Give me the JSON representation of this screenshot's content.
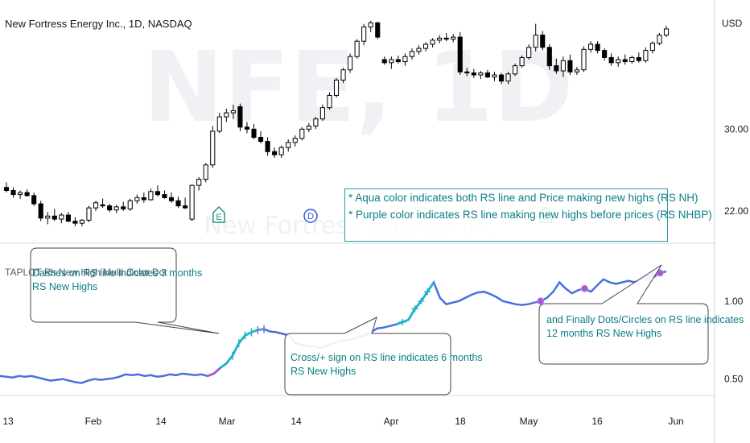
{
  "header": {
    "title": "New Fortress Energy Inc., 1D, NASDAQ",
    "currency": "USD",
    "watermark_ticker": "NFE, 1D",
    "watermark_name": "New Fortress Energy Inc."
  },
  "indicator": {
    "name": "TAPLOT Rs New High Multi Color Dot"
  },
  "info_box": {
    "line1": "* Aqua color indicates both RS line and Price making new highs (RS NH)",
    "line2": "* Purple color indicates RS line making new highs before prices (RS NHBP)"
  },
  "callouts": {
    "dashes": {
      "line1": "Dashes on RS line indicates 3 months",
      "line2": "RS New Highs"
    },
    "cross": {
      "line1": "Cross/+ sign on RS line indicates 6 months",
      "line2": "RS New Highs"
    },
    "dots": {
      "line1": "and Finally Dots/Circles on RS line indicates",
      "line2": "12 months RS New Highs"
    }
  },
  "event_markers": [
    {
      "label": "E",
      "type": "earnings",
      "date": "Feb 28"
    },
    {
      "label": "D",
      "type": "dividend",
      "date": "Mar 14"
    },
    {
      "label": "E",
      "type": "earnings",
      "date": "May 4"
    }
  ],
  "colors": {
    "candle_up": "#ffffff",
    "candle_down": "#000000",
    "rs_line": "#4a6fe0",
    "rs_nh_aqua": "#1fb3c9",
    "rs_nhbp_purple": "#a45ad6",
    "annotation_teal": "#0b7e86",
    "earnings_marker": "#1a9a7a",
    "dividend_marker": "#2a5ad8"
  },
  "chart_data": [
    {
      "type": "candlestick",
      "title": "New Fortress Energy Inc., 1D, NASDAQ",
      "ylabel": "USD",
      "y_ticks": [
        "22.00",
        "30.00"
      ],
      "x_ticks": [
        "13",
        "Feb",
        "14",
        "Mar",
        "14",
        "Apr",
        "18",
        "May",
        "16",
        "Jun"
      ],
      "ylim": [
        19,
        42
      ],
      "ohlc": [
        [
          24.3,
          24.8,
          23.8,
          24.0
        ],
        [
          24.0,
          24.3,
          23.3,
          23.6
        ],
        [
          23.6,
          24.0,
          23.2,
          23.8
        ],
        [
          23.8,
          24.1,
          23.4,
          23.5
        ],
        [
          23.5,
          23.8,
          22.5,
          22.7
        ],
        [
          22.7,
          23.0,
          21.0,
          21.3
        ],
        [
          21.3,
          21.9,
          20.7,
          21.5
        ],
        [
          21.5,
          22.2,
          21.0,
          21.2
        ],
        [
          21.2,
          21.8,
          20.8,
          21.6
        ],
        [
          21.6,
          21.9,
          20.9,
          21.0
        ],
        [
          21.0,
          21.4,
          20.5,
          20.8
        ],
        [
          20.8,
          21.2,
          20.5,
          21.1
        ],
        [
          21.1,
          22.5,
          20.9,
          22.3
        ],
        [
          22.3,
          23.0,
          22.0,
          22.8
        ],
        [
          22.6,
          23.2,
          22.3,
          22.5
        ],
        [
          22.5,
          22.7,
          21.9,
          22.1
        ],
        [
          22.1,
          22.6,
          21.8,
          22.4
        ],
        [
          22.4,
          22.9,
          22.0,
          22.2
        ],
        [
          22.2,
          23.2,
          22.0,
          23.0
        ],
        [
          23.0,
          23.6,
          22.7,
          23.3
        ],
        [
          23.3,
          23.8,
          22.8,
          23.1
        ],
        [
          23.1,
          24.2,
          23.0,
          23.9
        ],
        [
          23.9,
          24.5,
          23.4,
          23.6
        ],
        [
          23.6,
          24.0,
          23.2,
          23.3
        ],
        [
          23.3,
          23.8,
          22.8,
          23.0
        ],
        [
          23.0,
          23.4,
          22.3,
          22.5
        ],
        [
          22.5,
          23.3,
          22.2,
          22.3
        ],
        [
          21.2,
          24.6,
          21.0,
          24.5
        ],
        [
          24.5,
          25.3,
          24.0,
          25.1
        ],
        [
          25.1,
          26.7,
          24.8,
          26.5
        ],
        [
          26.5,
          30.3,
          26.2,
          29.8
        ],
        [
          29.8,
          31.6,
          29.6,
          31.2
        ],
        [
          31.2,
          32.0,
          30.7,
          31.6
        ],
        [
          31.6,
          32.4,
          31.0,
          31.8
        ],
        [
          32.2,
          32.5,
          29.8,
          30.2
        ],
        [
          30.2,
          30.7,
          29.6,
          30.0
        ],
        [
          30.0,
          30.5,
          29.0,
          29.2
        ],
        [
          29.2,
          29.8,
          28.6,
          28.8
        ],
        [
          28.8,
          29.2,
          27.4,
          27.8
        ],
        [
          27.8,
          28.2,
          27.2,
          27.5
        ],
        [
          27.5,
          28.4,
          27.2,
          28.2
        ],
        [
          28.2,
          29.0,
          27.8,
          28.7
        ],
        [
          28.7,
          29.4,
          28.3,
          29.1
        ],
        [
          29.1,
          30.2,
          28.9,
          30.0
        ],
        [
          30.0,
          30.6,
          29.7,
          30.3
        ],
        [
          30.3,
          31.2,
          30.0,
          31.0
        ],
        [
          31.0,
          32.4,
          30.8,
          32.1
        ],
        [
          32.1,
          33.6,
          31.9,
          33.3
        ],
        [
          33.3,
          35.0,
          33.1,
          34.8
        ],
        [
          34.8,
          36.0,
          34.5,
          35.8
        ],
        [
          35.8,
          37.4,
          35.5,
          37.1
        ],
        [
          37.1,
          38.8,
          36.9,
          38.6
        ],
        [
          38.6,
          40.3,
          38.2,
          40.0
        ],
        [
          40.0,
          40.6,
          39.5,
          40.4
        ],
        [
          40.4,
          40.5,
          38.8,
          39.0
        ],
        [
          36.8,
          37.1,
          36.3,
          36.5
        ],
        [
          36.5,
          37.1,
          35.9,
          36.8
        ],
        [
          36.8,
          37.2,
          36.4,
          36.6
        ],
        [
          36.6,
          37.4,
          36.2,
          37.1
        ],
        [
          37.1,
          37.9,
          36.8,
          37.6
        ],
        [
          37.6,
          38.2,
          37.3,
          37.9
        ],
        [
          37.9,
          38.5,
          37.6,
          38.3
        ],
        [
          38.3,
          38.9,
          38.0,
          38.7
        ],
        [
          38.7,
          39.2,
          38.4,
          38.9
        ],
        [
          38.9,
          39.4,
          38.6,
          38.8
        ],
        [
          38.8,
          39.3,
          38.5,
          39.0
        ],
        [
          39.0,
          39.5,
          35.3,
          35.6
        ],
        [
          35.6,
          36.0,
          35.2,
          35.5
        ],
        [
          35.5,
          35.9,
          35.0,
          35.3
        ],
        [
          35.3,
          35.7,
          34.9,
          35.5
        ],
        [
          35.5,
          35.8,
          35.0,
          35.1
        ],
        [
          35.1,
          35.6,
          34.7,
          35.3
        ],
        [
          35.3,
          35.5,
          34.4,
          34.7
        ],
        [
          34.7,
          35.6,
          34.4,
          35.4
        ],
        [
          35.4,
          36.4,
          35.2,
          36.2
        ],
        [
          36.2,
          37.2,
          36.0,
          37.0
        ],
        [
          37.0,
          38.3,
          36.8,
          38.0
        ],
        [
          38.0,
          40.3,
          37.6,
          39.2
        ],
        [
          39.2,
          39.6,
          37.7,
          38.0
        ],
        [
          38.0,
          38.3,
          35.8,
          36.2
        ],
        [
          36.2,
          36.9,
          35.4,
          35.7
        ],
        [
          35.7,
          37.1,
          35.1,
          36.7
        ],
        [
          36.7,
          37.3,
          35.3,
          35.6
        ],
        [
          35.6,
          36.1,
          35.3,
          35.8
        ],
        [
          35.8,
          38.1,
          35.6,
          37.8
        ],
        [
          37.8,
          38.6,
          37.5,
          38.3
        ],
        [
          38.3,
          38.6,
          37.4,
          37.7
        ],
        [
          37.7,
          37.9,
          36.7,
          37.0
        ],
        [
          37.0,
          37.4,
          36.2,
          36.5
        ],
        [
          36.5,
          37.1,
          36.1,
          36.8
        ],
        [
          36.8,
          37.3,
          36.3,
          36.6
        ],
        [
          36.6,
          37.2,
          36.4,
          37.0
        ],
        [
          37.0,
          37.5,
          36.5,
          36.7
        ],
        [
          36.7,
          38.0,
          36.5,
          37.7
        ],
        [
          37.7,
          38.6,
          37.4,
          38.4
        ],
        [
          38.4,
          39.4,
          38.2,
          39.2
        ],
        [
          39.2,
          40.1,
          39.0,
          39.8
        ]
      ]
    },
    {
      "type": "line",
      "title": "TAPLOT Rs New High Multi Color Dot",
      "y_ticks": [
        "0.50",
        "1.00"
      ],
      "ylim": [
        0.4,
        1.35
      ],
      "series": [
        {
          "values": [
            0.52,
            0.515,
            0.51,
            0.52,
            0.515,
            0.52,
            0.51,
            0.5,
            0.49,
            0.495,
            0.5,
            0.49,
            0.48,
            0.475,
            0.49,
            0.5,
            0.495,
            0.5,
            0.505,
            0.515,
            0.53,
            0.525,
            0.53,
            0.52,
            0.525,
            0.515,
            0.52,
            0.53,
            0.525,
            0.535,
            0.53,
            0.525,
            0.53,
            0.52,
            0.535,
            0.57,
            0.6,
            0.65,
            0.73,
            0.78,
            0.8,
            0.815,
            0.82,
            0.805,
            0.8,
            0.79,
            0.78,
            0.73,
            0.72,
            0.71,
            0.71,
            0.7,
            0.715,
            0.73,
            0.74,
            0.75,
            0.755,
            0.77,
            0.78,
            0.8,
            0.825,
            0.83,
            0.84,
            0.85,
            0.865,
            0.88,
            0.95,
            1.0,
            1.06,
            1.12,
            1.02,
            0.98,
            0.99,
            1.0,
            1.02,
            1.04,
            1.055,
            1.06,
            1.045,
            1.025,
            1.0,
            0.99,
            0.98,
            0.975,
            0.98,
            0.99,
            1.0,
            1.02,
            1.06,
            1.12,
            1.08,
            1.05,
            1.07,
            1.08,
            1.06,
            1.1,
            1.14,
            1.12,
            1.11,
            1.12,
            1.13,
            1.12,
            1.14,
            1.15,
            1.17,
            1.18,
            1.19
          ]
        }
      ]
    }
  ]
}
